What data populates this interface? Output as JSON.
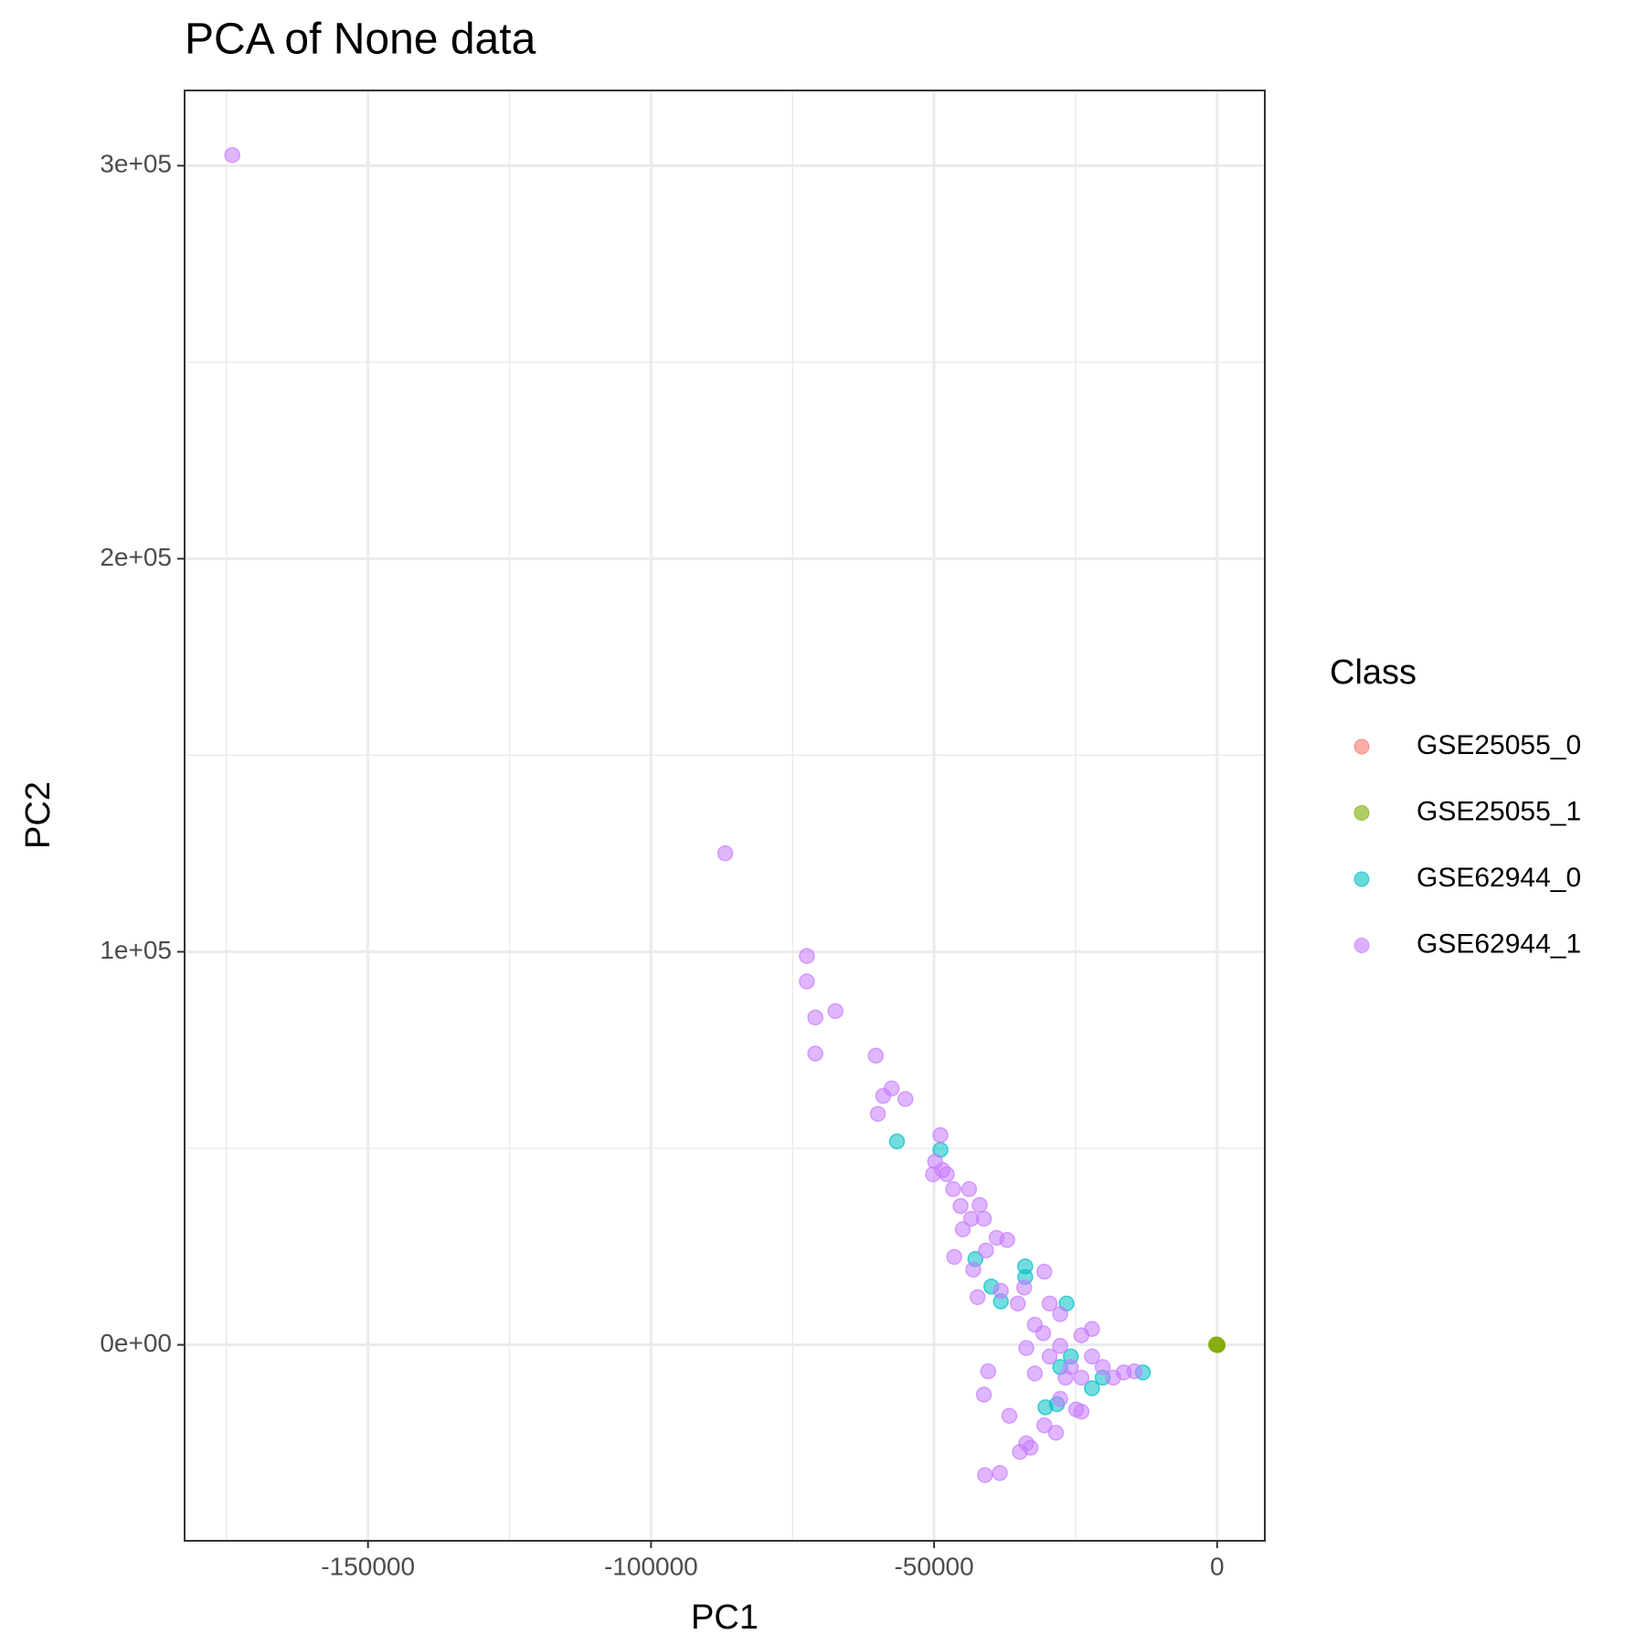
{
  "chart_data": {
    "type": "scatter",
    "title": "PCA of None data",
    "x_label": "PC1",
    "y_label": "PC2",
    "legend_title": "Class",
    "legend_position": "right",
    "grid": true,
    "xlim": [
      -182397,
      8427
    ],
    "ylim": [
      -49865,
      319137
    ],
    "xticks": [
      -150000,
      -100000,
      -50000,
      0
    ],
    "yticks": [
      {
        "value": 0,
        "label": "0e+00"
      },
      {
        "value": 100000,
        "label": "1e+05"
      },
      {
        "value": 200000,
        "label": "2e+05"
      },
      {
        "value": 300000,
        "label": "3e+05"
      }
    ],
    "x_minor_ticks": [
      -175000,
      -125000,
      -75000,
      -25000
    ],
    "y_minor_ticks": [
      50000,
      150000,
      250000
    ],
    "series": [
      {
        "name": "GSE25055_0",
        "color": "#F8766D",
        "x": [
          0
        ],
        "values": [
          0
        ]
      },
      {
        "name": "GSE25055_1",
        "color": "#7CAE00",
        "x": [
          0,
          -200,
          100
        ],
        "values": [
          0,
          100,
          -100
        ]
      },
      {
        "name": "GSE62944_0",
        "color": "#00BFC4",
        "x": [
          -56550,
          -48880,
          -42700,
          -39890,
          -38200,
          -33900,
          -33900,
          -26590,
          -30340,
          -28280,
          -22100,
          -13110,
          -27720,
          -25840,
          -20220
        ],
        "values": [
          51750,
          49600,
          21830,
          14820,
          11050,
          19950,
          17250,
          10510,
          -15900,
          -15090,
          -11050,
          -7010,
          -5660,
          -2960,
          -8360
        ]
      },
      {
        "name": "GSE62944_1",
        "color": "#C77CFF",
        "x": [
          -173970,
          -86890,
          -72470,
          -72470,
          -70980,
          -67420,
          -70980,
          -60300,
          -58990,
          -57490,
          -59930,
          -55060,
          -48880,
          -49810,
          -50190,
          -48500,
          -47750,
          -46630,
          -45320,
          -43820,
          -41950,
          -41200,
          -44940,
          -43450,
          -46440,
          -43070,
          -38950,
          -37080,
          -40820,
          -42320,
          -38200,
          -35210,
          -34080,
          -32210,
          -33710,
          -30720,
          -27720,
          -29590,
          -32210,
          -25840,
          -23970,
          -22100,
          -20220,
          -18350,
          -16480,
          -14610,
          -27720,
          -24910,
          -30530,
          -28470,
          -23970,
          -40450,
          -41200,
          -36700,
          -33710,
          -34830,
          -32960,
          -41010,
          -38390,
          -27720,
          -23970,
          -22100,
          -29590,
          -30530,
          -26780
        ],
        "values": [
          302700,
          125070,
          98920,
          92450,
          83290,
          84910,
          74120,
          73580,
          63340,
          65230,
          58760,
          62530,
          53370,
          46630,
          43400,
          44470,
          43400,
          39620,
          35310,
          39620,
          35580,
          32080,
          29380,
          32080,
          22370,
          19140,
          27220,
          26680,
          23990,
          12130,
          13750,
          10510,
          14560,
          5120,
          -810,
          2960,
          7820,
          -2960,
          -7280,
          -5660,
          -8360,
          -2960,
          -5660,
          -8360,
          -7010,
          -6740,
          -13750,
          -16440,
          -20490,
          -22370,
          -16980,
          -6740,
          -12670,
          -18060,
          -25070,
          -27220,
          -26150,
          -33150,
          -32610,
          -270,
          2430,
          4040,
          10510,
          18600,
          -8360
        ]
      }
    ]
  }
}
